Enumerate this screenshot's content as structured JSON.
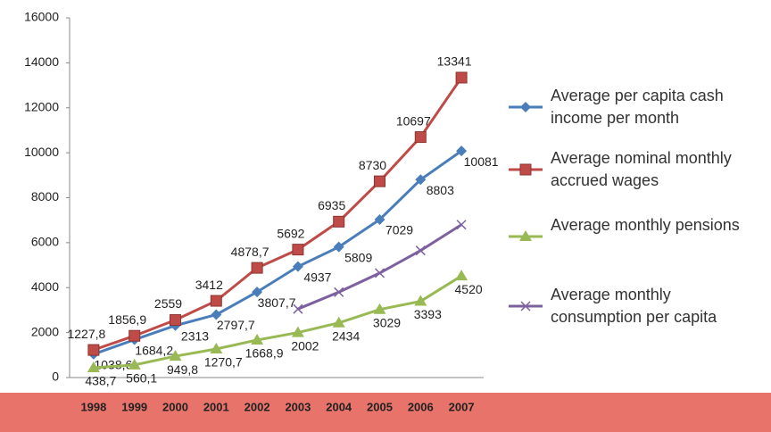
{
  "chart_data": {
    "type": "line",
    "categories": [
      "1998",
      "1999",
      "2000",
      "2001",
      "2002",
      "2003",
      "2004",
      "2005",
      "2006",
      "2007"
    ],
    "ylim": [
      0,
      16000
    ],
    "yticks": [
      0,
      2000,
      4000,
      6000,
      8000,
      10000,
      12000,
      14000,
      16000
    ],
    "series": [
      {
        "name": "Average per capita cash income per month",
        "color": "#4a7ebb",
        "marker": "diamond",
        "values": [
          1038.6,
          1684.2,
          2313,
          2797.7,
          3807.7,
          4937,
          5809,
          7029,
          8803,
          10081
        ],
        "value_labels": [
          "1038,6",
          "1684,2",
          "2313",
          "2797,7",
          "3807,7",
          "4937",
          "5809",
          "7029",
          "8803",
          "10081"
        ]
      },
      {
        "name": "Average nominal monthly accrued wages",
        "color": "#be4b48",
        "marker": "square",
        "values": [
          1227.8,
          1856.9,
          2559,
          3412,
          4878.7,
          5692,
          6935,
          8730,
          10697,
          13341
        ],
        "value_labels": [
          "1227,8",
          "1856,9",
          "2559",
          "3412",
          "4878,7",
          "5692",
          "6935",
          "8730",
          "10697",
          "13341"
        ]
      },
      {
        "name": "Average monthly pensions",
        "color": "#98b954",
        "marker": "triangle",
        "values": [
          438.7,
          560.1,
          949.8,
          1270.7,
          1668.9,
          2002,
          2434,
          3029,
          3393,
          4520
        ],
        "value_labels": [
          "438,7",
          "560,1",
          "949,8",
          "1270,7",
          "1668,9",
          "2002",
          "2434",
          "3029",
          "3393",
          "4520"
        ]
      },
      {
        "name": "Average monthly consumption per capita",
        "color": "#7d60a0",
        "marker": "x",
        "values": [
          null,
          null,
          null,
          null,
          null,
          3050,
          3800,
          4650,
          5650,
          6800
        ]
      }
    ]
  }
}
